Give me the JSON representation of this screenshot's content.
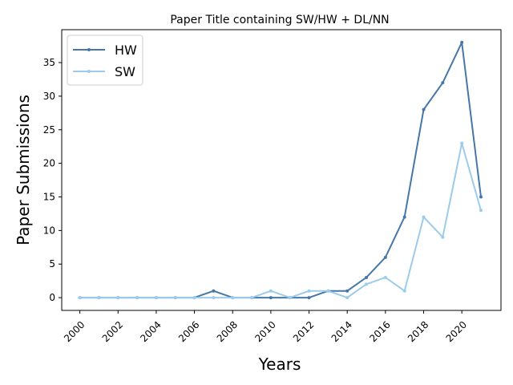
{
  "chart_data": {
    "type": "line",
    "title": "Paper Title containing SW/HW + DL/NN",
    "xlabel": "Years",
    "ylabel": "Paper Submissions",
    "x": [
      2000,
      2001,
      2002,
      2003,
      2004,
      2005,
      2006,
      2007,
      2008,
      2009,
      2010,
      2011,
      2012,
      2013,
      2014,
      2015,
      2016,
      2017,
      2018,
      2019,
      2020,
      2021
    ],
    "xticks": [
      "2000",
      "2002",
      "2004",
      "2006",
      "2008",
      "2010",
      "2012",
      "2014",
      "2016",
      "2018",
      "2020"
    ],
    "yticks": [
      "0",
      "5",
      "10",
      "15",
      "20",
      "25",
      "30",
      "35"
    ],
    "xlim": [
      1999.05,
      2022.05
    ],
    "ylim": [
      -1.9,
      39.9
    ],
    "grid": false,
    "legend_position": "top-left",
    "series": [
      {
        "name": "HW",
        "color": "#4677a8",
        "values": [
          0,
          0,
          0,
          0,
          0,
          0,
          0,
          1,
          0,
          0,
          0,
          0,
          0,
          1,
          1,
          3,
          6,
          12,
          28,
          32,
          38,
          15
        ]
      },
      {
        "name": "SW",
        "color": "#9ccbeb",
        "values": [
          0,
          0,
          0,
          0,
          0,
          0,
          0,
          0,
          0,
          0,
          1,
          0,
          1,
          1,
          0,
          2,
          3,
          1,
          12,
          9,
          23,
          13
        ]
      }
    ]
  }
}
